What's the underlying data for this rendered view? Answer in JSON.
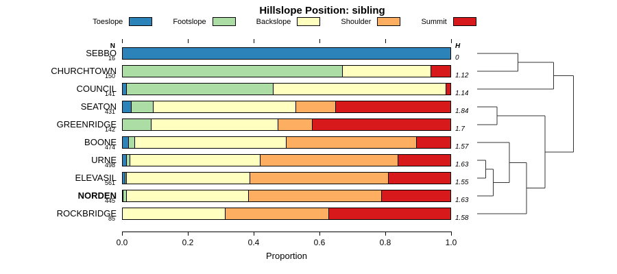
{
  "title": "Hillslope Position: sibling",
  "columns": {
    "n_header": "N",
    "h_header": "H"
  },
  "legend": {
    "items": [
      {
        "label": "Toeslope",
        "color": "#2B83BA"
      },
      {
        "label": "Footslope",
        "color": "#ABDDA4"
      },
      {
        "label": "Backslope",
        "color": "#FFFFBF"
      },
      {
        "label": "Shoulder",
        "color": "#FDAE61"
      },
      {
        "label": "Summit",
        "color": "#D7191C"
      }
    ]
  },
  "x_axis": {
    "label": "Proportion",
    "ticks": [
      "0.0",
      "0.2",
      "0.4",
      "0.6",
      "0.8",
      "1.0"
    ],
    "range": [
      0,
      1
    ]
  },
  "chart_data": {
    "type": "bar",
    "orientation": "horizontal",
    "stacked": true,
    "title": "Hillslope Position: sibling",
    "xlabel": "Proportion",
    "xlim": [
      0,
      1
    ],
    "grid": false,
    "categories": [
      "SEBBO",
      "CHURCHTOWN",
      "COUNCIL",
      "SEATON",
      "GREENRIDGE",
      "BOONE",
      "URNE",
      "ELEVASIL",
      "NORDEN",
      "ROCKBRIDGE"
    ],
    "bold_category": "NORDEN",
    "n_values": [
      16,
      150,
      141,
      431,
      142,
      474,
      498,
      561,
      445,
      85
    ],
    "h_values": [
      "0",
      "1.12",
      "1.14",
      "1.84",
      "1.7",
      "1.57",
      "1.63",
      "1.55",
      "1.63",
      "1.58"
    ],
    "series": [
      {
        "name": "Toeslope",
        "color": "#2B83BA",
        "values": [
          1.0,
          0,
          0.015,
          0.03,
          0,
          0.02,
          0.015,
          0.01,
          0.005,
          0
        ]
      },
      {
        "name": "Footslope",
        "color": "#ABDDA4",
        "values": [
          0,
          0.67,
          0.445,
          0.065,
          0.09,
          0.02,
          0.01,
          0.005,
          0.01,
          0
        ]
      },
      {
        "name": "Backslope",
        "color": "#FFFFBF",
        "values": [
          0,
          0.27,
          0.525,
          0.435,
          0.385,
          0.46,
          0.395,
          0.375,
          0.37,
          0.315
        ]
      },
      {
        "name": "Shoulder",
        "color": "#FDAE61",
        "values": [
          0,
          0,
          0,
          0.12,
          0.105,
          0.395,
          0.42,
          0.42,
          0.405,
          0.315
        ]
      },
      {
        "name": "Summit",
        "color": "#D7191C",
        "values": [
          0,
          0.06,
          0.015,
          0.35,
          0.42,
          0.105,
          0.16,
          0.19,
          0.21,
          0.37
        ]
      }
    ],
    "dendrogram": {
      "h": 0.78,
      "children": [
        {
          "h": 0.62,
          "children": [
            {
              "h": 0.33,
              "children": [
                {
                  "leaf": "SEBBO"
                },
                {
                  "leaf": "CHURCHTOWN"
                }
              ]
            },
            {
              "leaf": "COUNCIL"
            }
          ]
        },
        {
          "h": 0.55,
          "children": [
            {
              "h": 0.16,
              "children": [
                {
                  "leaf": "SEATON"
                },
                {
                  "leaf": "GREENRIDGE"
                }
              ]
            },
            {
              "h": 0.4,
              "children": [
                {
                  "h": 0.26,
                  "children": [
                    {
                      "leaf": "BOONE"
                    },
                    {
                      "h": 0.13,
                      "children": [
                        {
                          "h": 0.07,
                          "children": [
                            {
                              "leaf": "URNE"
                            },
                            {
                              "leaf": "ELEVASIL"
                            }
                          ]
                        },
                        {
                          "leaf": "NORDEN"
                        }
                      ]
                    }
                  ]
                },
                {
                  "leaf": "ROCKBRIDGE"
                }
              ]
            }
          ]
        }
      ]
    }
  }
}
